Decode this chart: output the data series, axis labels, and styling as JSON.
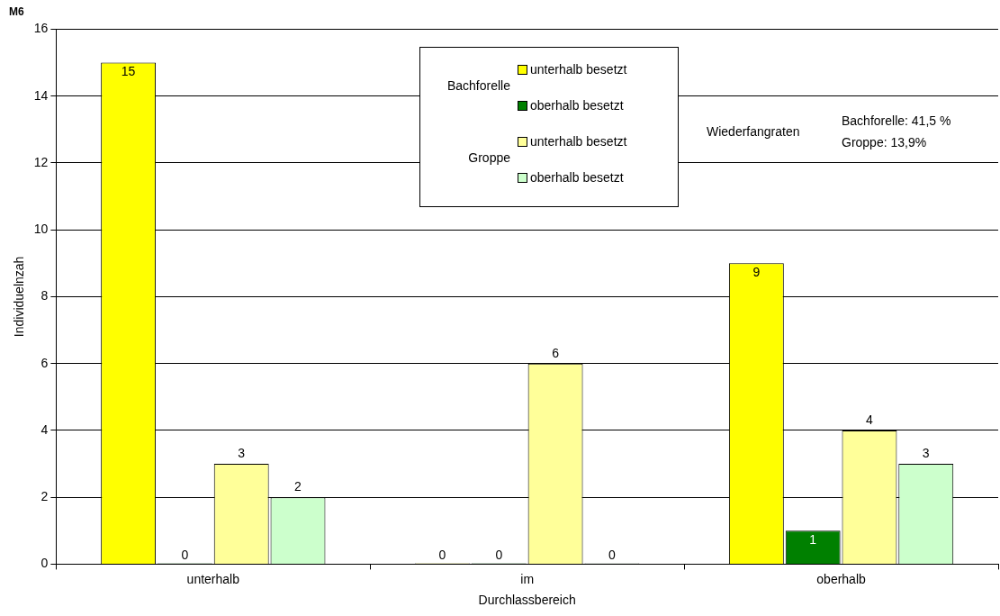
{
  "chart_data": {
    "type": "bar",
    "title": "M6",
    "xlabel": "Durchlassbereich",
    "ylabel": "Individuelnzah",
    "categories": [
      "unterhalb",
      "im",
      "oberhalb"
    ],
    "series": [
      {
        "name": "unterhalb besetzt",
        "color": "#ffff00",
        "values": [
          15,
          0,
          9
        ]
      },
      {
        "name": "oberhalb besetzt",
        "color": "#008000",
        "values": [
          0,
          0,
          1
        ]
      },
      {
        "name": "unterhalb besetzt",
        "color": "#ffff99",
        "values": [
          3,
          6,
          4
        ]
      },
      {
        "name": "oberhalb besetzt",
        "color": "#ccffcc",
        "values": [
          2,
          0,
          3
        ]
      }
    ],
    "ylim": [
      0,
      16
    ],
    "yticks": [
      0,
      2,
      4,
      6,
      8,
      10,
      12,
      14,
      16
    ],
    "grid": "y",
    "legend": "top",
    "data_labels": true,
    "annotations": [
      "Wiederfangraten",
      "Bachforelle: 41,5 %",
      "Groppe: 13,9%",
      "Bachforelle",
      "Groppe"
    ]
  }
}
